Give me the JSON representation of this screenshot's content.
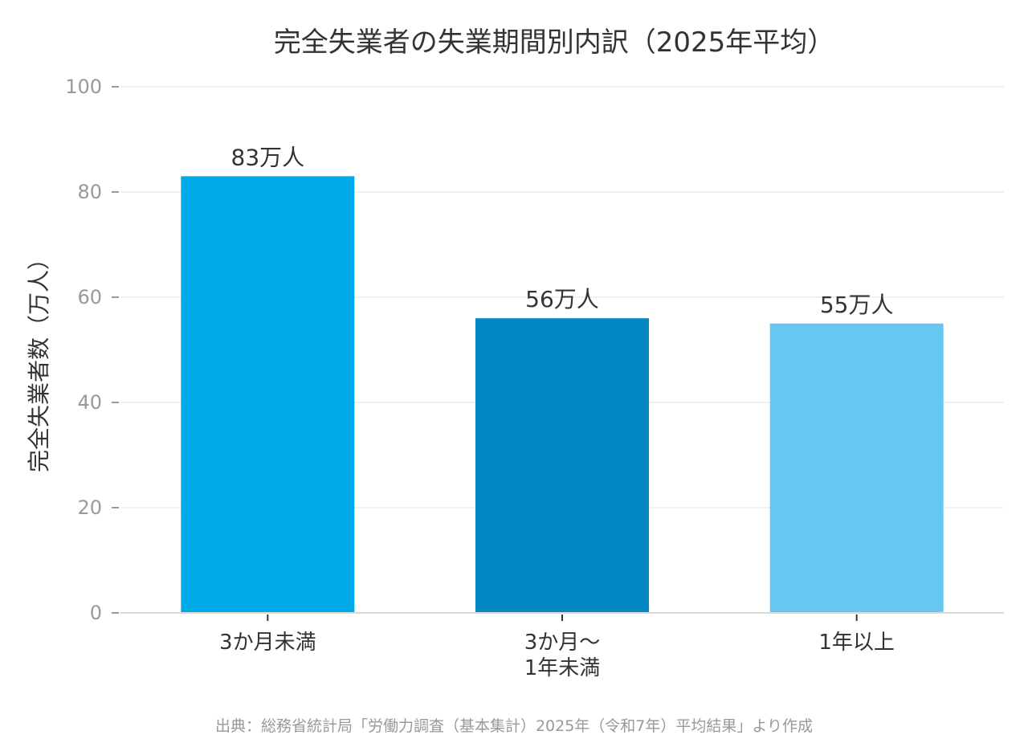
{
  "chart_data": {
    "type": "bar",
    "title": "完全失業者の失業期間別内訳（2025年平均）",
    "ylabel": "完全失業者数（万人）",
    "xlabel": "",
    "ylim": [
      0,
      100
    ],
    "yticks": [
      0,
      20,
      40,
      60,
      80,
      100
    ],
    "categories": [
      [
        "3か月未満"
      ],
      [
        "3か月～",
        "1年未満"
      ],
      [
        "1年以上"
      ]
    ],
    "values": [
      83,
      56,
      55
    ],
    "value_labels": [
      "83万人",
      "56万人",
      "55万人"
    ],
    "colors": [
      "#00A9E8",
      "#0289C3",
      "#66C8F0"
    ],
    "grid": true,
    "legend": "none",
    "source": "出典：総務省統計局「労働力調査（基本集計）2025年（令和7年）平均結果」より作成"
  }
}
